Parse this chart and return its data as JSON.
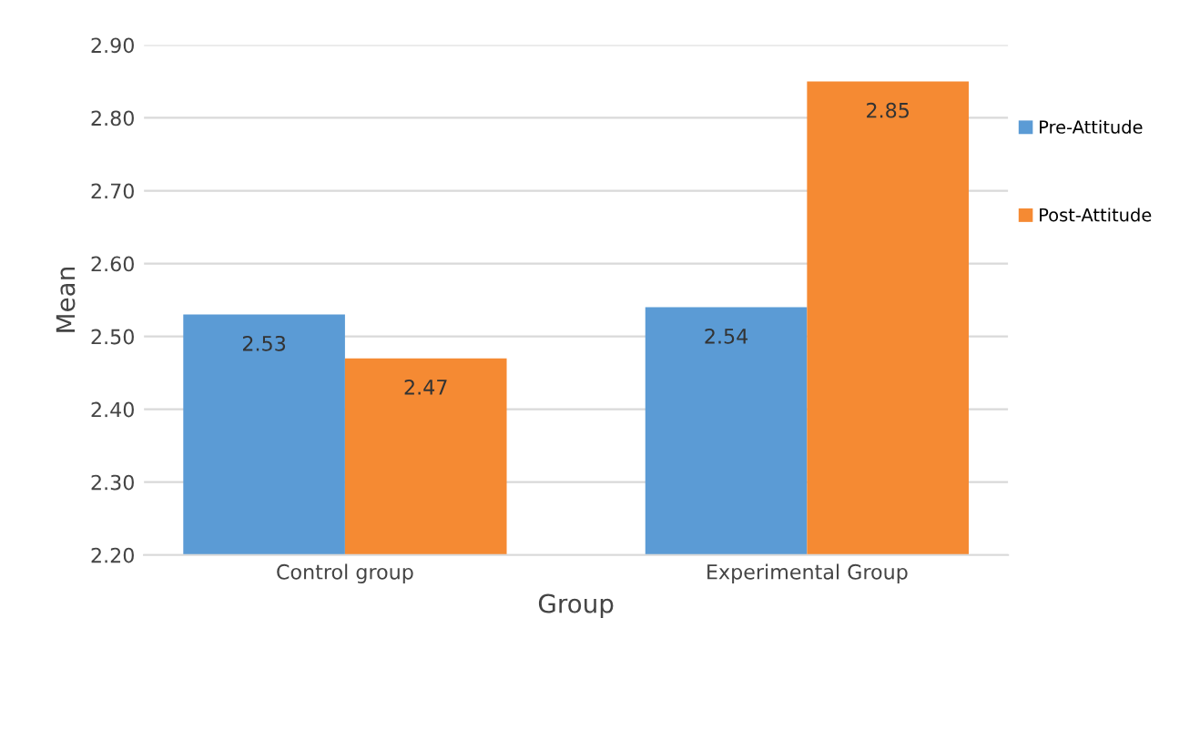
{
  "chart_data": {
    "type": "bar",
    "xlabel": "Group",
    "ylabel": "Mean",
    "categories": [
      "Control group",
      "Experimental Group"
    ],
    "series": [
      {
        "name": "Pre-Attitude",
        "color": "#5b9bd5",
        "values": [
          2.53,
          2.54
        ]
      },
      {
        "name": "Post-Attitude",
        "color": "#f58a33",
        "values": [
          2.47,
          2.85
        ]
      }
    ],
    "ylim": [
      2.2,
      2.9
    ],
    "yticks": [
      {
        "value": 2.2,
        "label": "2.20"
      },
      {
        "value": 2.3,
        "label": "2.30"
      },
      {
        "value": 2.4,
        "label": "2.40"
      },
      {
        "value": 2.5,
        "label": "2.50"
      },
      {
        "value": 2.6,
        "label": "2.60"
      },
      {
        "value": 2.7,
        "label": "2.70"
      },
      {
        "value": 2.8,
        "label": "2.80"
      },
      {
        "value": 2.9,
        "label": "2.90"
      }
    ],
    "grid": "y",
    "legend": "right",
    "data_labels": true
  }
}
